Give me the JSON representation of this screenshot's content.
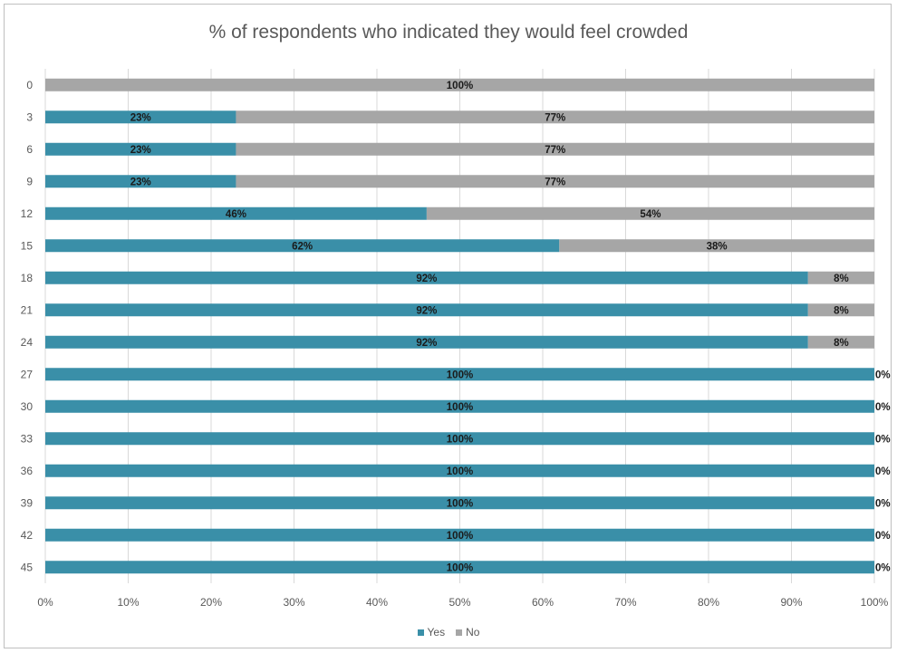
{
  "chart_data": {
    "type": "bar",
    "orientation": "horizontal",
    "stacked": "100%",
    "title": "% of respondents who indicated they would feel crowded",
    "categories": [
      "0",
      "3",
      "6",
      "9",
      "12",
      "15",
      "18",
      "21",
      "24",
      "27",
      "30",
      "33",
      "36",
      "39",
      "42",
      "45"
    ],
    "series": [
      {
        "name": "Yes",
        "color": "#3a8fa8",
        "values": [
          0,
          23,
          23,
          23,
          46,
          62,
          92,
          92,
          92,
          100,
          100,
          100,
          100,
          100,
          100,
          100
        ]
      },
      {
        "name": "No",
        "color": "#a6a6a6",
        "values": [
          100,
          77,
          77,
          77,
          54,
          38,
          8,
          8,
          8,
          0,
          0,
          0,
          0,
          0,
          0,
          0
        ]
      }
    ],
    "xlim": [
      0,
      100
    ],
    "x_ticks": [
      "0%",
      "10%",
      "20%",
      "30%",
      "40%",
      "50%",
      "60%",
      "70%",
      "80%",
      "90%",
      "100%"
    ],
    "grid": true,
    "legend_position": "bottom"
  }
}
